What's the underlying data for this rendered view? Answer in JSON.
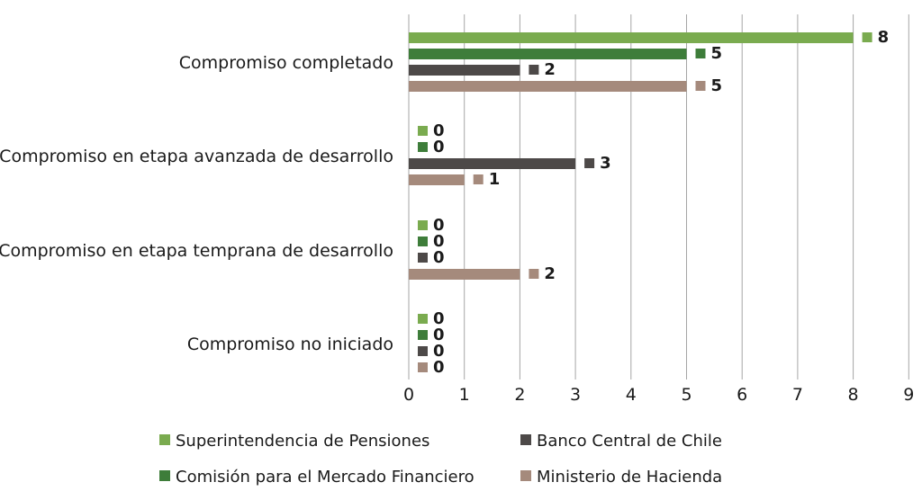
{
  "chart_data": {
    "type": "bar",
    "orientation": "horizontal",
    "title": "",
    "xlabel": "",
    "ylabel": "",
    "xlim": [
      0,
      9
    ],
    "x_ticks": [
      0,
      1,
      2,
      3,
      4,
      5,
      6,
      7,
      8,
      9
    ],
    "grid": "vertical",
    "legend_position": "bottom",
    "categories": [
      "Compromiso completado",
      "Compromiso en etapa avanzada de desarrollo",
      "Compromiso en etapa temprana de desarrollo",
      "Compromiso no iniciado"
    ],
    "series": [
      {
        "name": "Superintendencia de Pensiones",
        "color": "#7aab4f",
        "values": [
          8,
          0,
          0,
          0
        ]
      },
      {
        "name": "Comisión para el Mercado Financiero",
        "color": "#3e7d3a",
        "values": [
          5,
          0,
          0,
          0
        ]
      },
      {
        "name": "Banco Central de Chile",
        "color": "#4d4948",
        "values": [
          2,
          3,
          0,
          0
        ]
      },
      {
        "name": "Ministerio de Hacienda",
        "color": "#a58a7c",
        "values": [
          5,
          1,
          2,
          0
        ]
      }
    ]
  }
}
